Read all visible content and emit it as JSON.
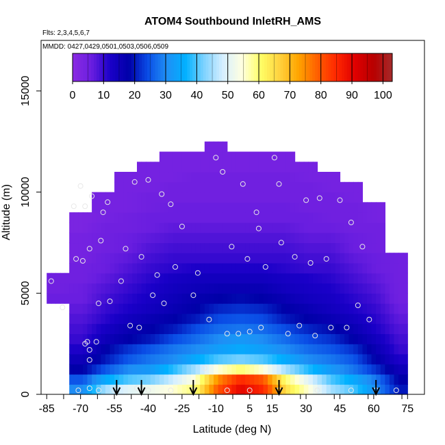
{
  "chart_data": {
    "type": "heatmap",
    "title": "ATOM4 Southbound InletRH_AMS",
    "subtitle_flights": "Flts: 2,3,4,5,6,7",
    "subtitle_dates": "MMDD: 0427,0429,0501,0503,0506,0509",
    "xlabel": "Latitude (deg N)",
    "ylabel": "Altitude (m)",
    "xlim": [
      -87.5,
      82.5
    ],
    "ylim": [
      0,
      17500
    ],
    "x_ticks": [
      -85,
      -70,
      -55,
      -40,
      -25,
      -10,
      5,
      15,
      30,
      45,
      60,
      75
    ],
    "x_tick_labels": [
      "-85",
      "-70",
      "-55",
      "-40",
      "-25",
      "-10",
      "5",
      "15",
      "30",
      "45",
      "60",
      "75"
    ],
    "y_ticks": [
      0,
      5000,
      10000,
      15000
    ],
    "y_tick_labels": [
      "0",
      "5000",
      "10000",
      "15000"
    ],
    "colorbar": {
      "min": 0,
      "max": 103,
      "ticks": [
        0,
        10,
        20,
        30,
        40,
        50,
        60,
        70,
        80,
        90,
        100
      ],
      "tick_labels": [
        "0",
        "10",
        "20",
        "30",
        "40",
        "50",
        "60",
        "70",
        "80",
        "90",
        "100"
      ],
      "colors": [
        "#8a2be2",
        "#6a1ee0",
        "#1a00c8",
        "#0000a8",
        "#0a4de6",
        "#1f8ff5",
        "#00b0ff",
        "#7fd3ff",
        "#d6efff",
        "#ffffe0",
        "#ffff66",
        "#ffd23f",
        "#ffa500",
        "#ff6000",
        "#ff2800",
        "#e00000",
        "#b80000",
        "#a52a2a"
      ]
    },
    "sounding_arrows_lat": [
      -54,
      -43,
      -20,
      18,
      61
    ],
    "rh_profile": {
      "altitudes_m": [
        250,
        750,
        1250,
        1750,
        2250,
        2750,
        3250,
        3750,
        4250,
        4750,
        5250,
        5750,
        6250,
        6750,
        7250,
        7750,
        8250,
        8750,
        9250,
        9750,
        10250,
        10750,
        11250,
        11750,
        12250
      ],
      "latitude_band_centers": [
        -80,
        -70,
        -60,
        -50,
        -40,
        -30,
        -20,
        -10,
        0,
        10,
        20,
        30,
        40,
        50,
        60,
        70
      ],
      "values": [
        [
          0,
          30,
          45,
          50,
          52,
          55,
          60,
          80,
          90,
          85,
          65,
          55,
          45,
          40,
          30,
          20
        ],
        [
          0,
          25,
          35,
          40,
          42,
          48,
          55,
          75,
          85,
          80,
          60,
          50,
          40,
          35,
          28,
          18
        ],
        [
          0,
          18,
          25,
          30,
          32,
          38,
          45,
          55,
          60,
          55,
          45,
          38,
          32,
          28,
          22,
          15
        ],
        [
          0,
          15,
          20,
          25,
          28,
          30,
          35,
          40,
          42,
          40,
          35,
          30,
          28,
          25,
          18,
          12
        ],
        [
          0,
          12,
          18,
          22,
          25,
          28,
          30,
          33,
          35,
          33,
          30,
          27,
          25,
          22,
          16,
          10
        ],
        [
          0,
          10,
          15,
          18,
          20,
          24,
          27,
          30,
          32,
          30,
          27,
          24,
          22,
          18,
          14,
          9
        ],
        [
          0,
          9,
          13,
          16,
          18,
          20,
          24,
          27,
          28,
          27,
          24,
          21,
          19,
          16,
          12,
          8
        ],
        [
          0,
          8,
          11,
          14,
          16,
          18,
          20,
          24,
          25,
          24,
          20,
          18,
          16,
          14,
          11,
          7
        ],
        [
          0,
          7,
          10,
          12,
          14,
          16,
          18,
          21,
          22,
          21,
          18,
          16,
          14,
          12,
          10,
          6
        ],
        [
          6,
          6,
          9,
          11,
          13,
          15,
          17,
          18,
          19,
          18,
          16,
          14,
          13,
          11,
          9,
          5
        ],
        [
          5,
          6,
          8,
          10,
          12,
          14,
          15,
          16,
          16,
          16,
          14,
          13,
          12,
          10,
          8,
          5
        ],
        [
          5,
          5,
          7,
          9,
          11,
          13,
          14,
          14,
          14,
          14,
          13,
          12,
          11,
          9,
          7,
          5
        ],
        [
          0,
          5,
          6,
          8,
          10,
          11,
          12,
          12,
          12,
          12,
          11,
          10,
          10,
          8,
          6,
          5
        ],
        [
          0,
          4,
          6,
          7,
          9,
          10,
          10,
          10,
          10,
          10,
          10,
          9,
          9,
          7,
          6,
          5
        ],
        [
          0,
          4,
          5,
          6,
          8,
          9,
          9,
          9,
          9,
          9,
          9,
          8,
          8,
          6,
          5,
          0
        ],
        [
          0,
          4,
          5,
          6,
          7,
          8,
          8,
          8,
          8,
          8,
          8,
          7,
          7,
          6,
          5,
          0
        ],
        [
          0,
          3,
          5,
          5,
          6,
          7,
          7,
          7,
          7,
          7,
          7,
          6,
          6,
          5,
          5,
          0
        ],
        [
          0,
          3,
          4,
          5,
          6,
          6,
          6,
          6,
          6,
          6,
          6,
          6,
          5,
          5,
          4,
          0
        ],
        [
          0,
          0,
          4,
          4,
          5,
          6,
          6,
          6,
          6,
          6,
          6,
          5,
          5,
          5,
          4,
          0
        ],
        [
          0,
          0,
          4,
          4,
          5,
          5,
          5,
          5,
          5,
          5,
          5,
          5,
          5,
          4,
          0,
          0
        ],
        [
          0,
          0,
          0,
          4,
          4,
          5,
          5,
          5,
          5,
          5,
          5,
          5,
          4,
          4,
          0,
          0
        ],
        [
          0,
          0,
          0,
          4,
          4,
          4,
          5,
          5,
          5,
          5,
          5,
          4,
          4,
          0,
          0,
          0
        ],
        [
          0,
          0,
          0,
          0,
          4,
          4,
          4,
          4,
          4,
          4,
          4,
          4,
          0,
          0,
          0,
          0
        ],
        [
          0,
          0,
          0,
          0,
          0,
          4,
          4,
          4,
          4,
          4,
          4,
          0,
          0,
          0,
          0,
          0
        ],
        [
          0,
          0,
          0,
          0,
          0,
          0,
          0,
          4,
          0,
          0,
          0,
          0,
          0,
          0,
          0,
          0
        ]
      ]
    }
  }
}
